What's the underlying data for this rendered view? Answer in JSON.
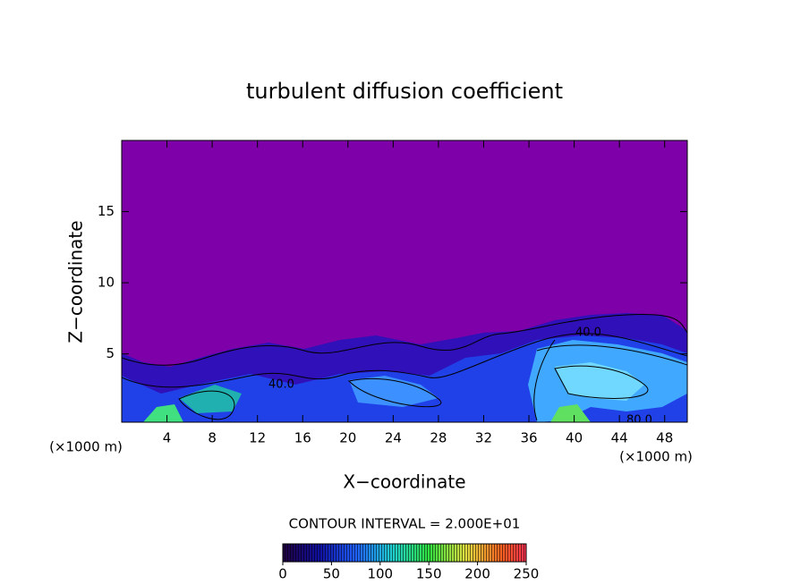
{
  "chart_data": {
    "type": "contour",
    "title": "turbulent diffusion coefficient",
    "xlabel": "X−coordinate",
    "ylabel": "Z−coordinate",
    "xunit": "(×1000 m)",
    "xunit2": "(×1000 m)",
    "xlim": [
      0,
      50
    ],
    "xticks": [
      4,
      8,
      12,
      16,
      20,
      24,
      28,
      32,
      36,
      40,
      44,
      48
    ],
    "ylim": [
      0.2,
      20
    ],
    "yticks": [
      5,
      10,
      15
    ],
    "annotations": [
      "40.0",
      "40.0",
      "80.0"
    ],
    "colorbar": {
      "title": "CONTOUR INTERVAL = 2.000E+01",
      "lim": [
        0,
        250
      ],
      "ticks": [
        0,
        50,
        100,
        150,
        200,
        250
      ]
    }
  }
}
